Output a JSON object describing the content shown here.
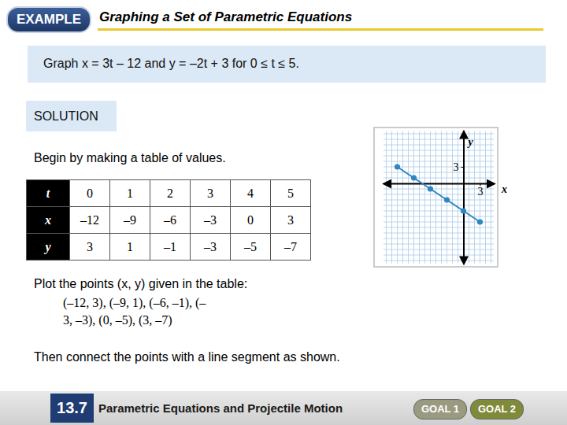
{
  "header": {
    "badge": "EXAMPLE",
    "title": "Graphing a Set of Parametric Equations"
  },
  "problem": "Graph x = 3t – 12 and y = –2t + 3 for 0 ≤ t ≤ 5.",
  "solution_label": "SOLUTION",
  "steps": [
    "Begin by making a table of values.",
    "Plot the points (x, y) given in the table:",
    "Then connect the points with a line segment as shown."
  ],
  "points_text": [
    "(–12, 3), (–9, 1), (–6, –1), (–",
    "3, –3), (0, –5), (3, –7)"
  ],
  "table": {
    "rows": [
      [
        "t",
        "0",
        "1",
        "2",
        "3",
        "4",
        "5"
      ],
      [
        "x",
        "–12",
        "–9",
        "–6",
        "–3",
        "0",
        "3"
      ],
      [
        "y",
        "3",
        "1",
        "–1",
        "–3",
        "–5",
        "–7"
      ]
    ]
  },
  "chart_data": {
    "type": "line",
    "x_label": "x",
    "y_label": "y",
    "x": [
      -12,
      -9,
      -6,
      -3,
      0,
      3
    ],
    "values": [
      3,
      1,
      -1,
      -3,
      -5,
      -7
    ],
    "color": "#2f86c0",
    "marker": "circle",
    "xlim": [
      -14.5,
      5.5
    ],
    "ylim": [
      -14.5,
      9.5
    ],
    "xticks": [
      3
    ],
    "yticks": [
      3
    ],
    "grid": true
  },
  "footer": {
    "section": "13.7",
    "title": "Parametric Equations and Projectile Motion",
    "goals": [
      "GOAL 1",
      "GOAL 2"
    ]
  }
}
